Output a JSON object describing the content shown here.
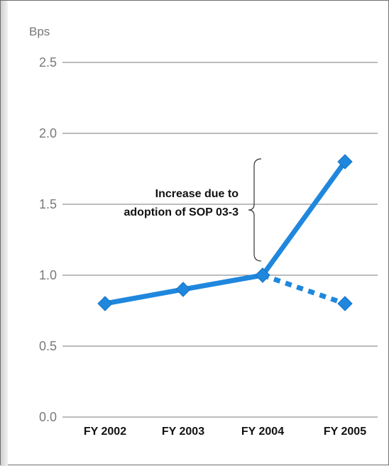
{
  "chart_data": {
    "type": "line",
    "unit_label": "Bps",
    "categories": [
      "FY 2002",
      "FY 2003",
      "FY 2004",
      "FY 2005"
    ],
    "series": [
      {
        "style": "solid",
        "x": [
          "FY 2002",
          "FY 2003",
          "FY 2004",
          "FY 2005"
        ],
        "values": [
          0.8,
          0.9,
          1.0,
          1.8
        ]
      },
      {
        "style": "dashed",
        "x": [
          "FY 2004",
          "FY 2005"
        ],
        "values": [
          1.0,
          0.8
        ]
      }
    ],
    "y_ticks": [
      "0.0",
      "0.5",
      "1.0",
      "1.5",
      "2.0",
      "2.5"
    ],
    "ylim": [
      0,
      2.5
    ],
    "grid": true,
    "line_color": "#1f87dd",
    "annotation": {
      "lines": [
        "Increase due to",
        "adoption of SOP 03-3"
      ],
      "brace_from": 1.0,
      "brace_to": 1.8
    }
  }
}
